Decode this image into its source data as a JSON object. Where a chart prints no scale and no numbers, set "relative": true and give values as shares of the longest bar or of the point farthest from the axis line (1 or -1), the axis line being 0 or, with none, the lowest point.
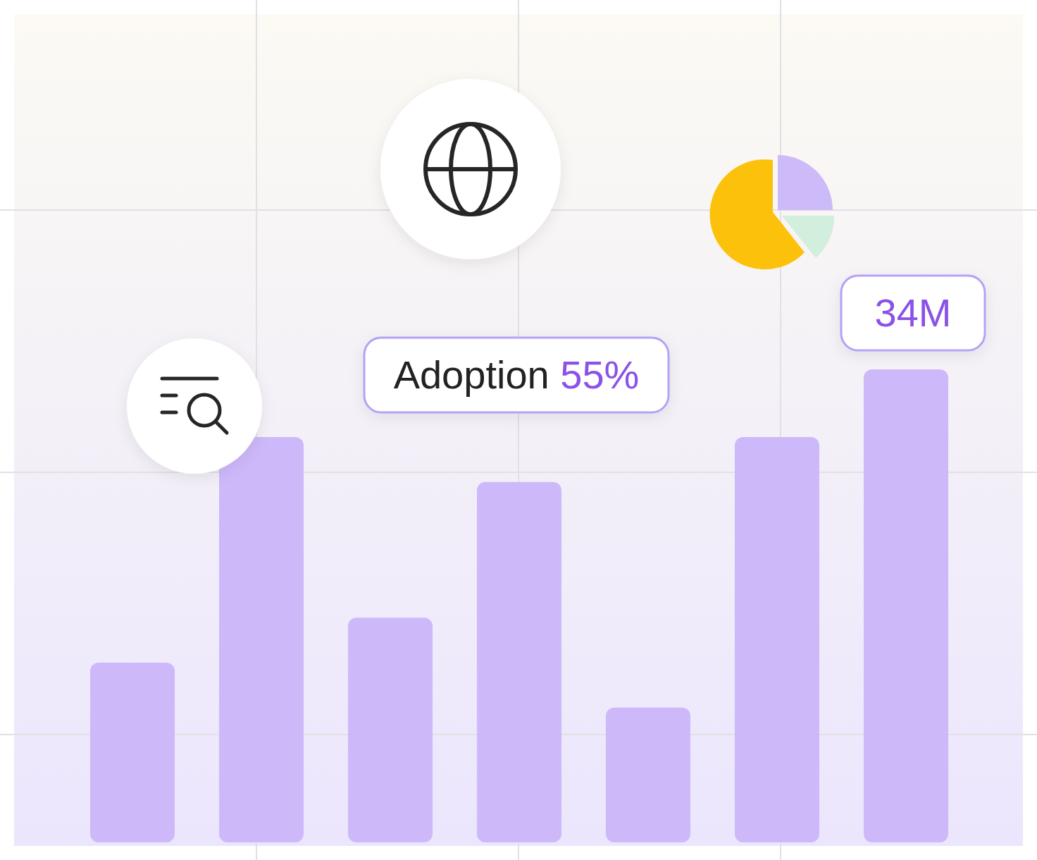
{
  "chart_data": {
    "type": "bar",
    "relative": true,
    "categories": [
      null,
      null,
      null,
      null,
      null,
      null,
      null
    ],
    "values": [
      0.38,
      0.857,
      0.475,
      0.762,
      0.285,
      0.857,
      1.0
    ],
    "color": "#cdb9fa",
    "grid": true,
    "annotations": [
      "Adoption 55%",
      "34M"
    ]
  }
}
